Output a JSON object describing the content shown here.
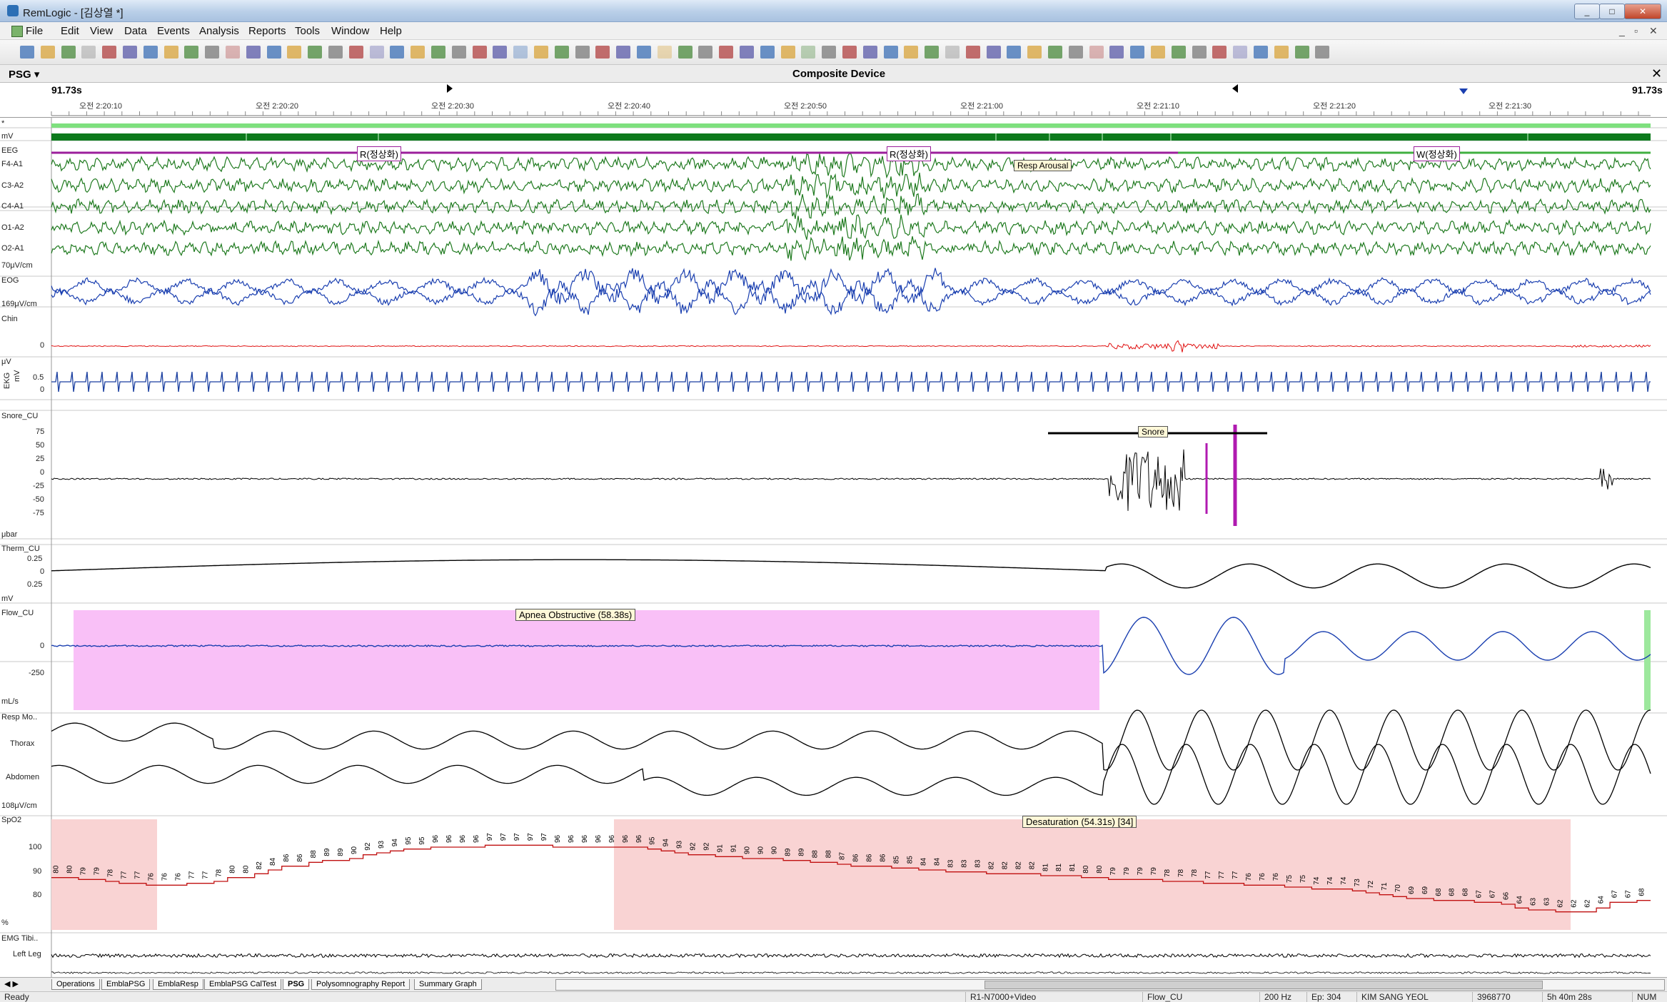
{
  "window": {
    "title": "RemLogic - [김상열 *]",
    "min": "_",
    "max": "□",
    "close": "✕"
  },
  "menu": {
    "items": [
      "File",
      "Edit",
      "View",
      "Data",
      "Events",
      "Analysis",
      "Reports",
      "Tools",
      "Window",
      "Help"
    ],
    "mdi_controls": [
      "_",
      "▫",
      "✕"
    ]
  },
  "panel": {
    "label": "PSG ▾",
    "device": "Composite Device",
    "close": "✕"
  },
  "timeline": {
    "start_label": "91.73s",
    "end_label": "91.73s",
    "ticks": [
      "오전 2:20:10",
      "오전 2:20:20",
      "오전 2:20:30",
      "오전 2:20:40",
      "오전 2:20:50",
      "오전 2:21:00",
      "오전 2:21:10",
      "오전 2:21:20",
      "오전 2:21:30"
    ]
  },
  "channels": {
    "pos": "*",
    "hyp": "mV",
    "eeg": "EEG",
    "eeg_leads": [
      "F4-A1",
      "C3-A2",
      "C4-A1",
      "O1-A2",
      "O2-A1"
    ],
    "eeg_scale": "70μV/cm",
    "eog": "EOG",
    "eog_scale": "169μV/cm",
    "chin": "Chin",
    "chin_zero": "0",
    "chin_unit": "μV",
    "ekg": "EKG",
    "ekg_unit": "mV",
    "ekg_scale": [
      "0.5",
      "0"
    ],
    "snore": "Snore_CU",
    "snore_scale": [
      "75",
      "50",
      "25",
      "0",
      "-25",
      "-50",
      "-75"
    ],
    "snore_unit": "μbar",
    "therm": "Therm_CU",
    "therm_scale": [
      "0.25",
      "0",
      "0.25"
    ],
    "therm_unit": "mV",
    "flow": "Flow_CU",
    "flow_scale": [
      "0",
      "-250"
    ],
    "flow_unit": "mL/s",
    "resp": "Resp Mo..",
    "thorax": "Thorax",
    "abdomen": "Abdomen",
    "resp_scale": "108μV/cm",
    "spo2": "SpO2",
    "spo2_scale": [
      "100",
      "90",
      "80"
    ],
    "spo2_unit": "%",
    "emg": "EMG Tibi..",
    "left_leg": "Left Leg"
  },
  "events": {
    "stage1": "R(정상화)",
    "stage2": "R(정상화)",
    "stage3": "W(정상화)",
    "arousal": "Resp Arousal",
    "snore": "Snore",
    "apnea": "Apnea Obstructive (58.38s)",
    "desat": "Desaturation (54.31s) [34]"
  },
  "spo2_values": [
    "80",
    "80",
    "79",
    "79",
    "78",
    "77",
    "77",
    "76",
    "76",
    "76",
    "77",
    "77",
    "78",
    "80",
    "80",
    "82",
    "84",
    "86",
    "86",
    "88",
    "89",
    "89",
    "90",
    "92",
    "93",
    "94",
    "95",
    "95",
    "96",
    "96",
    "96",
    "96",
    "97",
    "97",
    "97",
    "97",
    "97",
    "96",
    "96",
    "96",
    "96",
    "96",
    "96",
    "96",
    "95",
    "94",
    "93",
    "92",
    "92",
    "91",
    "91",
    "90",
    "90",
    "90",
    "89",
    "89",
    "88",
    "88",
    "87",
    "86",
    "86",
    "86",
    "85",
    "85",
    "84",
    "84",
    "83",
    "83",
    "83",
    "82",
    "82",
    "82",
    "82",
    "81",
    "81",
    "81",
    "80",
    "80",
    "79",
    "79",
    "79",
    "79",
    "78",
    "78",
    "78",
    "77",
    "77",
    "77",
    "76",
    "76",
    "76",
    "75",
    "75",
    "74",
    "74",
    "74",
    "73",
    "72",
    "71",
    "70",
    "69",
    "69",
    "68",
    "68",
    "68",
    "67",
    "67",
    "66",
    "64",
    "63",
    "63",
    "62",
    "62",
    "62",
    "64",
    "67",
    "67",
    "68"
  ],
  "tabs": [
    "Operations",
    "EmblaPSG",
    "EmblaResp",
    "EmblaPSG CalTest",
    "PSG",
    "Polysomnography Report",
    "Summary Graph"
  ],
  "status": {
    "ready": "Ready",
    "video": "R1-N7000+Video",
    "channel": "Flow_CU",
    "rate": "200 Hz",
    "epoch": "Ep: 304",
    "patient": "KIM SANG YEOL",
    "id": "3968770",
    "elapsed": "5h 40m 28s",
    "mode": "NUM"
  },
  "colors": {
    "eeg": "#1f7a1f",
    "eog": "#1a3fb0",
    "chin": "#e01010",
    "ekg": "#1a3fa0",
    "apnea_fill": "#f9c0f7",
    "desat_fill": "#f9d3d3",
    "stage_bar": "#9b1f9b",
    "hyp_bar": "#0c7a1c",
    "pos_bar": "#7ee07e"
  }
}
